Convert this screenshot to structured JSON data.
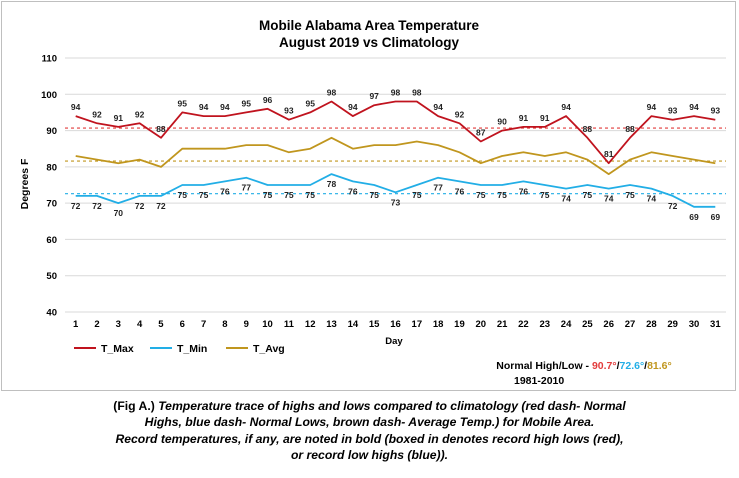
{
  "chart_data": {
    "type": "line",
    "title": [
      "Mobile Alabama Area Temperature",
      "August 2019 vs Climatology"
    ],
    "xlabel": "Day",
    "ylabel": "Degrees F",
    "ylim": [
      40,
      110
    ],
    "yticks": [
      40,
      50,
      60,
      70,
      80,
      90,
      100,
      110
    ],
    "grid": true,
    "legend_position": "bottom-left",
    "x": [
      1,
      2,
      3,
      4,
      5,
      6,
      7,
      8,
      9,
      10,
      11,
      12,
      13,
      14,
      15,
      16,
      17,
      18,
      19,
      20,
      21,
      22,
      23,
      24,
      25,
      26,
      27,
      28,
      29,
      30,
      31
    ],
    "series": [
      {
        "name": "T_Max",
        "color": "#c0131e",
        "values": [
          94,
          92,
          91,
          92,
          88,
          95,
          94,
          94,
          95,
          96,
          93,
          95,
          98,
          94,
          97,
          98,
          98,
          94,
          92,
          87,
          90,
          91,
          91,
          94,
          88,
          81,
          88,
          94,
          93,
          94,
          93
        ],
        "labeled": true
      },
      {
        "name": "T_Min",
        "color": "#22aee6",
        "values": [
          72,
          72,
          70,
          72,
          72,
          75,
          75,
          76,
          77,
          75,
          75,
          75,
          78,
          76,
          75,
          73,
          75,
          77,
          76,
          75,
          75,
          76,
          75,
          74,
          75,
          74,
          75,
          74,
          72,
          69,
          69
        ],
        "labeled": true
      },
      {
        "name": "T_Avg",
        "color": "#c0961e",
        "values": [
          83,
          82,
          81,
          82,
          80,
          85,
          85,
          85,
          86,
          86,
          84,
          85,
          88,
          85,
          86,
          86,
          87,
          86,
          84,
          81,
          83,
          84,
          83,
          84,
          82,
          78,
          82,
          84,
          83,
          82,
          81
        ],
        "labeled": false
      }
    ],
    "reference_lines": [
      {
        "value": 90.7,
        "color": "#e23b3b",
        "style": "dashed"
      },
      {
        "value": 72.6,
        "color": "#22aee6",
        "style": "dashed"
      },
      {
        "value": 81.6,
        "color": "#c0961e",
        "style": "dashed"
      }
    ],
    "normals_annotation": {
      "prefix": "Normal High/Low - ",
      "high": "90.7°",
      "sep1": "/",
      "low": "72.6°",
      "sep2": "/",
      "avg": "81.6°",
      "period": "1981-2010"
    }
  },
  "caption": {
    "lead": "(Fig A.) ",
    "lines": [
      "Temperature trace of highs and lows compared to climatology (red dash- Normal",
      "Highs, blue dash- Normal Lows, brown dash- Average Temp.) for Mobile Area.",
      "Record temperatures, if any, are noted in bold (boxed in denotes record high lows (red),",
      "or record low highs (blue))."
    ]
  }
}
